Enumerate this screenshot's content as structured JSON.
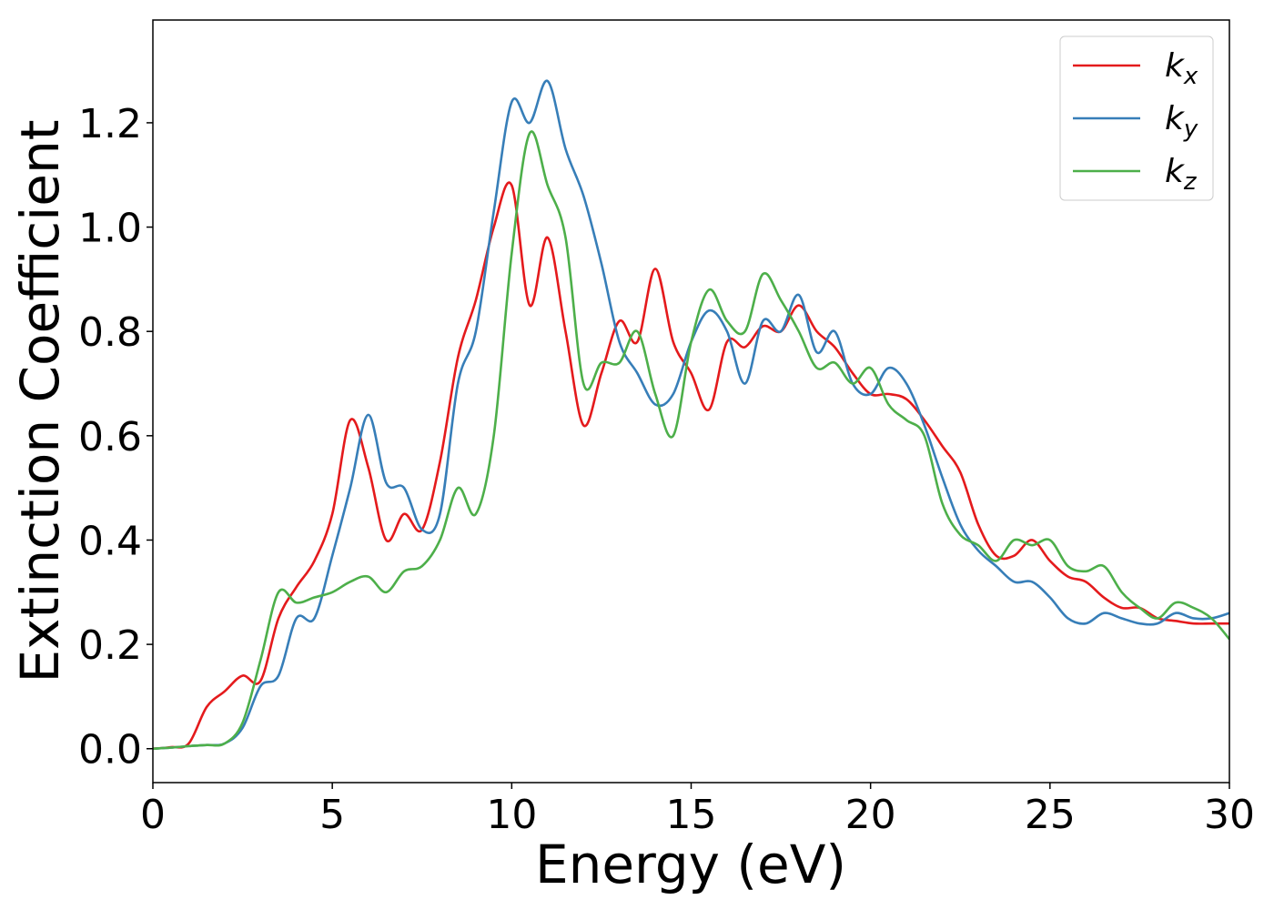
{
  "chart_data": {
    "type": "line",
    "x_label": "Energy (eV)",
    "y_label": "Extinction Coefficient",
    "x": [
      0,
      0.5,
      1,
      1.5,
      2,
      2.5,
      3,
      3.5,
      4,
      4.5,
      5,
      5.5,
      6,
      6.5,
      7,
      7.5,
      8,
      8.5,
      9,
      9.5,
      10,
      10.5,
      11,
      11.5,
      12,
      12.5,
      13,
      13.5,
      14,
      14.5,
      15,
      15.5,
      16,
      16.5,
      17,
      17.5,
      18,
      18.5,
      19,
      19.5,
      20,
      20.5,
      21,
      21.5,
      22,
      22.5,
      23,
      23.5,
      24,
      24.5,
      25,
      25.5,
      26,
      26.5,
      27,
      27.5,
      28,
      28.5,
      29,
      29.5,
      30
    ],
    "series": [
      {
        "name": "kx",
        "color": "#e41a1c",
        "values": [
          0,
          0.003,
          0.01,
          0.08,
          0.11,
          0.14,
          0.13,
          0.25,
          0.31,
          0.36,
          0.45,
          0.63,
          0.54,
          0.4,
          0.45,
          0.42,
          0.55,
          0.75,
          0.86,
          1.0,
          1.08,
          0.85,
          0.98,
          0.8,
          0.62,
          0.72,
          0.82,
          0.78,
          0.92,
          0.78,
          0.72,
          0.65,
          0.78,
          0.77,
          0.81,
          0.8,
          0.85,
          0.8,
          0.77,
          0.72,
          0.68,
          0.68,
          0.67,
          0.63,
          0.58,
          0.53,
          0.43,
          0.37,
          0.37,
          0.4,
          0.36,
          0.33,
          0.32,
          0.29,
          0.27,
          0.27,
          0.25,
          0.245,
          0.24,
          0.24,
          0.24
        ]
      },
      {
        "name": "ky",
        "color": "#377eb8",
        "values": [
          0,
          0.002,
          0.005,
          0.007,
          0.01,
          0.04,
          0.12,
          0.14,
          0.25,
          0.25,
          0.37,
          0.5,
          0.64,
          0.51,
          0.5,
          0.42,
          0.45,
          0.7,
          0.8,
          1.03,
          1.24,
          1.2,
          1.28,
          1.15,
          1.06,
          0.93,
          0.78,
          0.72,
          0.66,
          0.68,
          0.78,
          0.84,
          0.8,
          0.7,
          0.82,
          0.8,
          0.87,
          0.76,
          0.8,
          0.7,
          0.68,
          0.73,
          0.7,
          0.62,
          0.52,
          0.43,
          0.38,
          0.35,
          0.32,
          0.32,
          0.29,
          0.25,
          0.24,
          0.26,
          0.25,
          0.24,
          0.24,
          0.26,
          0.25,
          0.25,
          0.26
        ]
      },
      {
        "name": "kz",
        "color": "#4daf4a",
        "values": [
          0,
          0.002,
          0.005,
          0.007,
          0.01,
          0.05,
          0.17,
          0.3,
          0.28,
          0.29,
          0.3,
          0.32,
          0.33,
          0.3,
          0.34,
          0.35,
          0.4,
          0.5,
          0.45,
          0.6,
          0.95,
          1.18,
          1.08,
          0.98,
          0.7,
          0.74,
          0.74,
          0.8,
          0.68,
          0.6,
          0.78,
          0.88,
          0.82,
          0.8,
          0.91,
          0.86,
          0.8,
          0.73,
          0.74,
          0.7,
          0.73,
          0.66,
          0.63,
          0.6,
          0.47,
          0.41,
          0.39,
          0.36,
          0.4,
          0.39,
          0.4,
          0.35,
          0.34,
          0.35,
          0.3,
          0.27,
          0.25,
          0.28,
          0.27,
          0.25,
          0.21
        ]
      }
    ],
    "xlim": [
      0,
      30
    ],
    "xticks": [
      0,
      5,
      10,
      15,
      20,
      25,
      30
    ],
    "ylim": [
      -0.065,
      1.397
    ],
    "yticks": [
      {
        "value": 0,
        "label": "0.0"
      },
      0.2,
      0.4,
      0.6,
      0.8,
      {
        "value": 1,
        "label": "1.0"
      },
      1.2
    ],
    "legend": "upper right",
    "grid": false
  }
}
